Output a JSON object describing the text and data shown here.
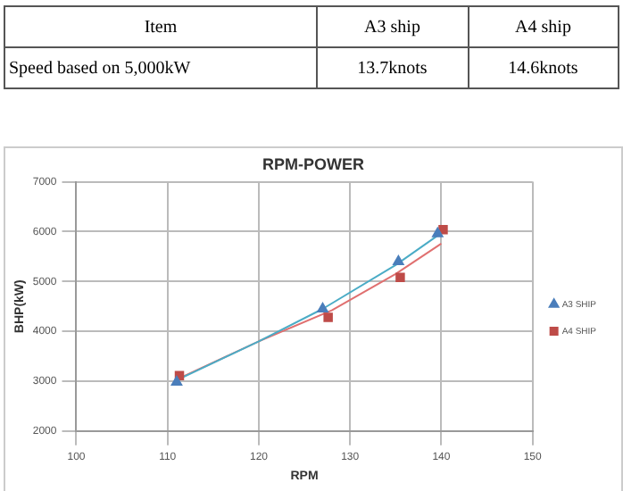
{
  "chart_data": {
    "type": "scatter",
    "title": "RPM-POWER",
    "xlabel": "RPM",
    "ylabel": "BHP(kW)",
    "annotations": [
      "Item",
      "A3  ship",
      "A4  ship",
      "Speed  based  on  5,000kW",
      "13.7knots",
      "14.6knots"
    ],
    "series": [
      {
        "name": "A3 SHIP",
        "color": "#4a7ebb",
        "marker": "triangle",
        "x": [
          111,
          127,
          135.3,
          139.6
        ],
        "values": [
          2980,
          4450,
          5400,
          5960
        ]
      },
      {
        "name": "A4 SHIP",
        "color": "#be4b48",
        "marker": "square",
        "x": [
          111.3,
          127.6,
          135.5,
          140.2
        ],
        "values": [
          3110,
          4280,
          5080,
          6040
        ]
      },
      {
        "type": "line",
        "color": "#4bacc6",
        "marker": "none",
        "x": [
          111,
          120,
          127,
          135,
          139.6
        ],
        "values": [
          3020,
          3800,
          4450,
          5330,
          5920
        ]
      },
      {
        "type": "line",
        "color": "#e07070",
        "marker": "none",
        "x": [
          111.3,
          120,
          128,
          135,
          140
        ],
        "values": [
          3060,
          3800,
          4420,
          5150,
          5760
        ]
      }
    ],
    "xlim": [
      100,
      150
    ],
    "xticks": [
      100,
      110,
      120,
      130,
      140,
      150
    ],
    "ylim": [
      2000,
      7000
    ],
    "yticks": [
      2000,
      3000,
      4000,
      5000,
      6000,
      7000
    ],
    "grid": true,
    "legend": "right"
  }
}
